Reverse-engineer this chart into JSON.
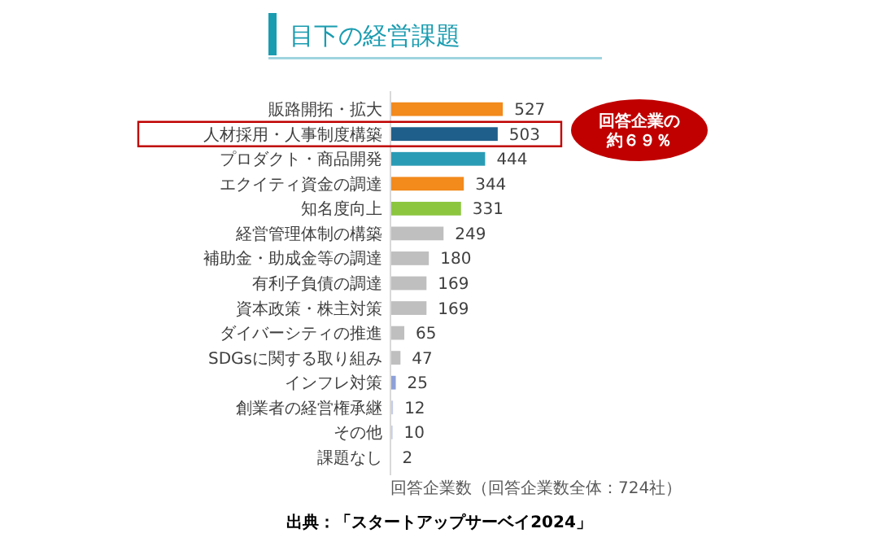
{
  "chart_data": {
    "type": "bar",
    "orientation": "horizontal",
    "title": "目下の経営課題",
    "xlabel": "回答企業数（回答企業数全体：724社）",
    "categories": [
      "販路開拓・拡大",
      "人材採用・人事制度構築",
      "プロダクト・商品開発",
      "エクイティ資金の調達",
      "知名度向上",
      "経営管理体制の構築",
      "補助金・助成金等の調達",
      "有利子負債の調達",
      "資本政策・株主対策",
      "ダイバーシティの推進",
      "SDGsに関する取り組み",
      "インフレ対策",
      "創業者の経営権承継",
      "その他",
      "課題なし"
    ],
    "values": [
      527,
      503,
      444,
      344,
      331,
      249,
      180,
      169,
      169,
      65,
      47,
      25,
      12,
      10,
      2
    ],
    "colors": [
      "#f28a1c",
      "#1f5f8b",
      "#2a9bb5",
      "#f28a1c",
      "#8cc63f",
      "#bfbfbf",
      "#bfbfbf",
      "#bfbfbf",
      "#bfbfbf",
      "#bfbfbf",
      "#bfbfbf",
      "#8ea0d8",
      "#c5cde8",
      "#c5cde8",
      "#c5cde8"
    ],
    "data_labels": true,
    "annotations": [
      "回答企業の",
      "約６９％",
      "出典：「スタートアップサーベイ2024」"
    ]
  }
}
